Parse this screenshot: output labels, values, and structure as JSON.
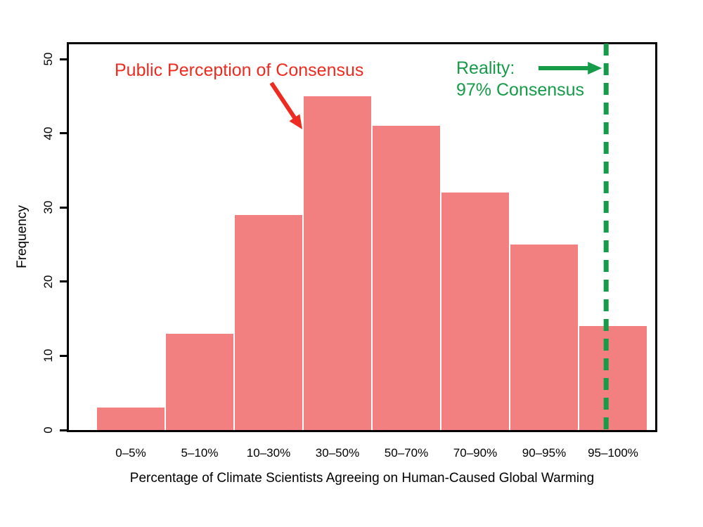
{
  "chart_data": {
    "type": "bar",
    "title": "",
    "categories": [
      "0–5%",
      "5–10%",
      "10–30%",
      "30–50%",
      "50–70%",
      "70–90%",
      "90–95%",
      "95–100%"
    ],
    "values": [
      3,
      13,
      29,
      45,
      41,
      32,
      25,
      14
    ],
    "xlabel": "Percentage of Climate Scientists Agreeing on Human-Caused Global Warming",
    "ylabel": "Frequency",
    "yticks": [
      0,
      10,
      20,
      30,
      40,
      50
    ],
    "ylim": [
      0,
      52
    ],
    "grid": false,
    "legend": "none",
    "bar_color": "#F28080",
    "bar_gap_color": "#FFFFFF",
    "axis_color": "#000000",
    "annotations": {
      "public_perception": {
        "text": "Public Perception of Consensus",
        "color": "#ED2B20"
      },
      "reality": {
        "line1": "Reality:",
        "line2": "97% Consensus",
        "color": "#169B48"
      }
    },
    "reality_line": {
      "percent": 97,
      "color": "#169B48",
      "style": "dashed"
    }
  }
}
